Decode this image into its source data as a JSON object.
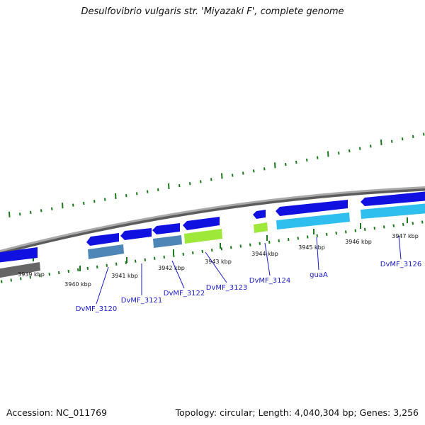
{
  "title": "Desulfovibrio vulgaris str. 'Miyazaki F', complete genome",
  "footer": {
    "accession": "Accession: NC_011769",
    "stats": "Topology: circular; Length: 4,040,304 bp; Genes: 3,256"
  },
  "colors": {
    "cds": "#1010e0",
    "protein": "#4f86b8",
    "trna": "#9ee83a",
    "rrna": "#2fbfee",
    "pseudo": "#666666",
    "backbone": "#8a8a8a",
    "tick": "#1b7a1b",
    "label": "#1a1acc"
  },
  "scale": {
    "ticks": [
      {
        "label": "3939 kbp"
      },
      {
        "label": "3940 kbp"
      },
      {
        "label": "3941 kbp"
      },
      {
        "label": "3942 kbp"
      },
      {
        "label": "3943 kbp"
      },
      {
        "label": "3944 kbp"
      },
      {
        "label": "3945 kbp"
      },
      {
        "label": "3946 kbp"
      },
      {
        "label": "3947 kbp"
      }
    ]
  },
  "genes": [
    {
      "label": "DvMF_3120"
    },
    {
      "label": "DvMF_3121"
    },
    {
      "label": "DvMF_3122"
    },
    {
      "label": "DvMF_3123"
    },
    {
      "label": "DvMF_3124"
    },
    {
      "label": "guaA"
    },
    {
      "label": "DvMF_3126"
    }
  ]
}
